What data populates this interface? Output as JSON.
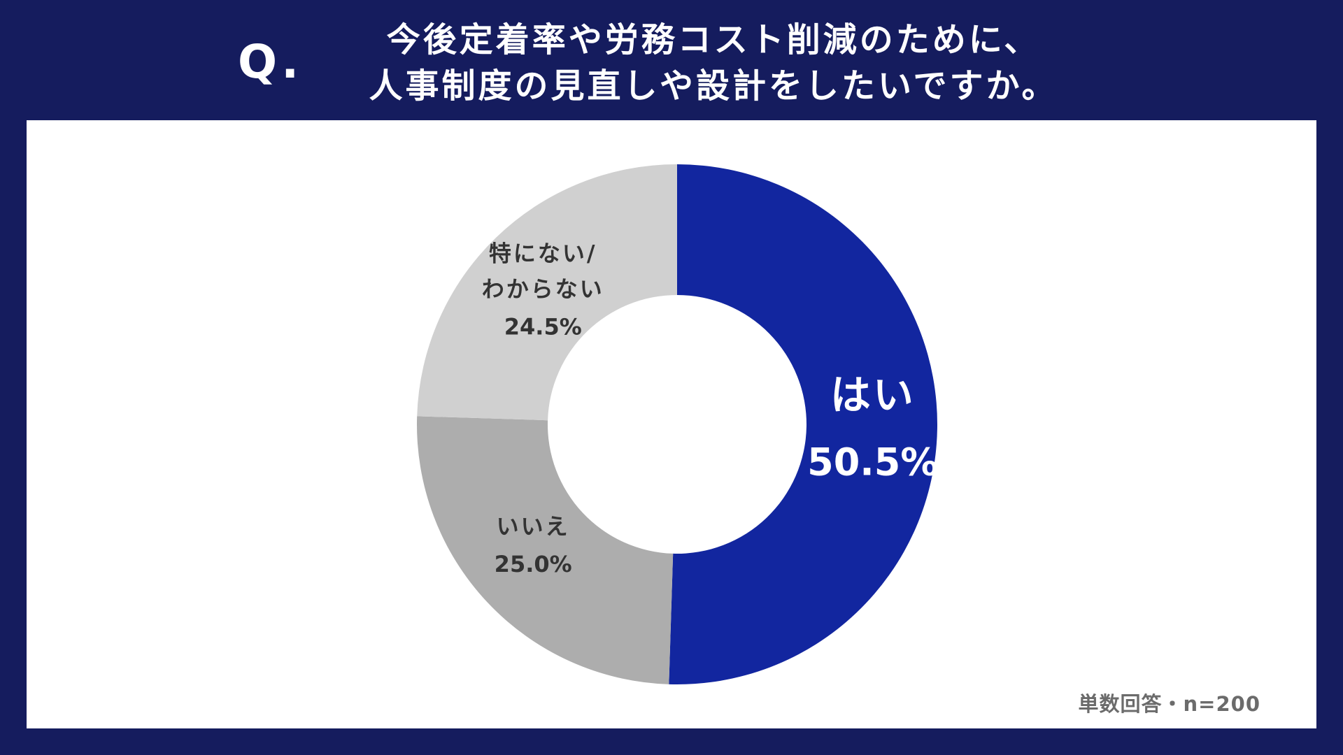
{
  "header": {
    "q_mark": "Q.",
    "question_line1": "今後定着率や労務コスト削減のために、",
    "question_line2": "人事制度の見直しや設計をしたいですか。"
  },
  "footnote": "単数回答・n=200",
  "chart_data": {
    "type": "pie",
    "donut": true,
    "start": "12 o'clock, clockwise",
    "slices": [
      {
        "label": "はい",
        "value": 50.5,
        "display": "50.5%",
        "color": "#12269f",
        "text_color": "#ffffff"
      },
      {
        "label": "いいえ",
        "value": 25.0,
        "display": "25.0%",
        "color": "#adadad",
        "text_color": "#333333"
      },
      {
        "label": "特にない/わからない",
        "value": 24.5,
        "display": "24.5%",
        "color": "#d0d0d0",
        "text_color": "#333333"
      }
    ],
    "legend": "none (labels on slices)"
  }
}
